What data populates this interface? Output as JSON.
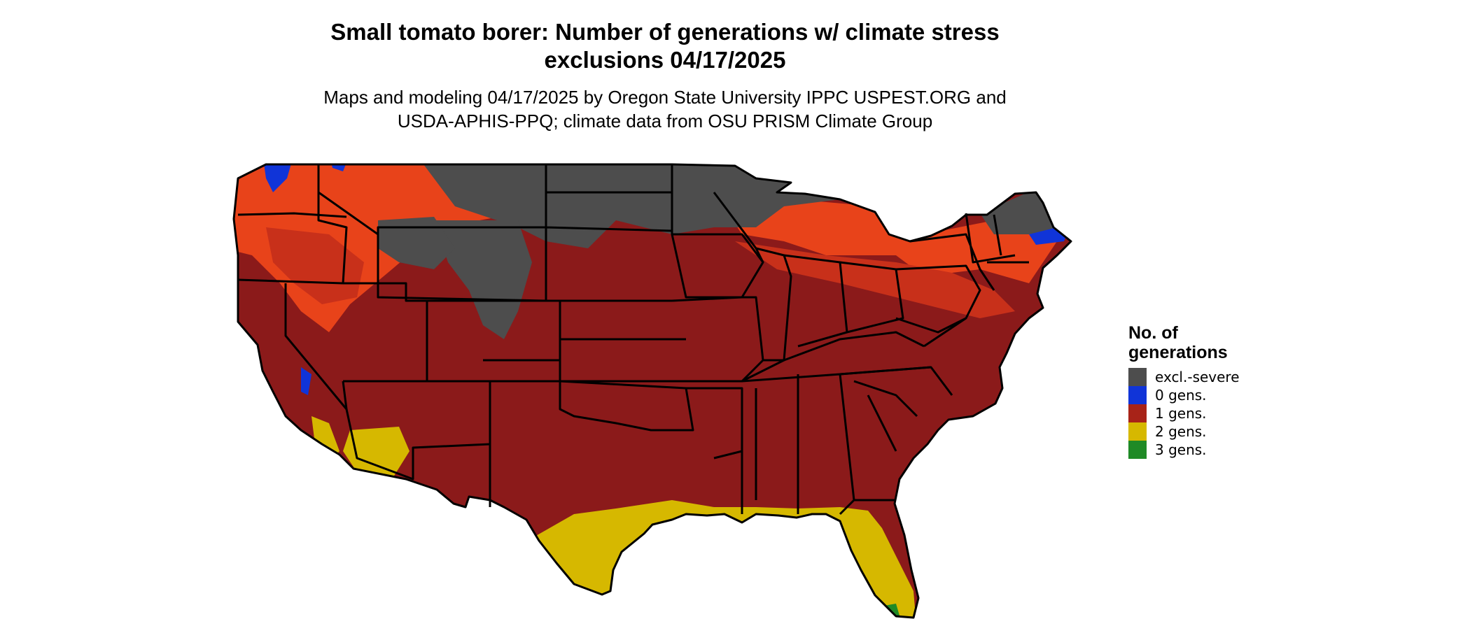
{
  "title_line1": "Small tomato borer: Number of generations w/ climate stress",
  "title_line2": "exclusions 04/17/2025",
  "subtitle_line1": "Maps and modeling 04/17/2025 by Oregon State University IPPC USPEST.ORG and",
  "subtitle_line2": "USDA-APHIS-PPQ; climate data from OSU PRISM Climate Group",
  "legend": {
    "title_line1": "No. of",
    "title_line2": "generations",
    "items": [
      {
        "label": "excl.-severe",
        "color": "#4d4d4d"
      },
      {
        "label": "0 gens.",
        "color": "#1034d8"
      },
      {
        "label": "1 gens.",
        "color": "#a82318"
      },
      {
        "label": "2 gens.",
        "color": "#d6b800"
      },
      {
        "label": "3 gens.",
        "color": "#1f8a26"
      }
    ]
  },
  "map_colors": {
    "stress": "#4d4d4d",
    "zero": "#1034d8",
    "one_dark": "#8b1a1a",
    "one_mid": "#c8301a",
    "one_light": "#e8431a",
    "two": "#d6b800",
    "three": "#1f8a26",
    "border": "#000000"
  }
}
